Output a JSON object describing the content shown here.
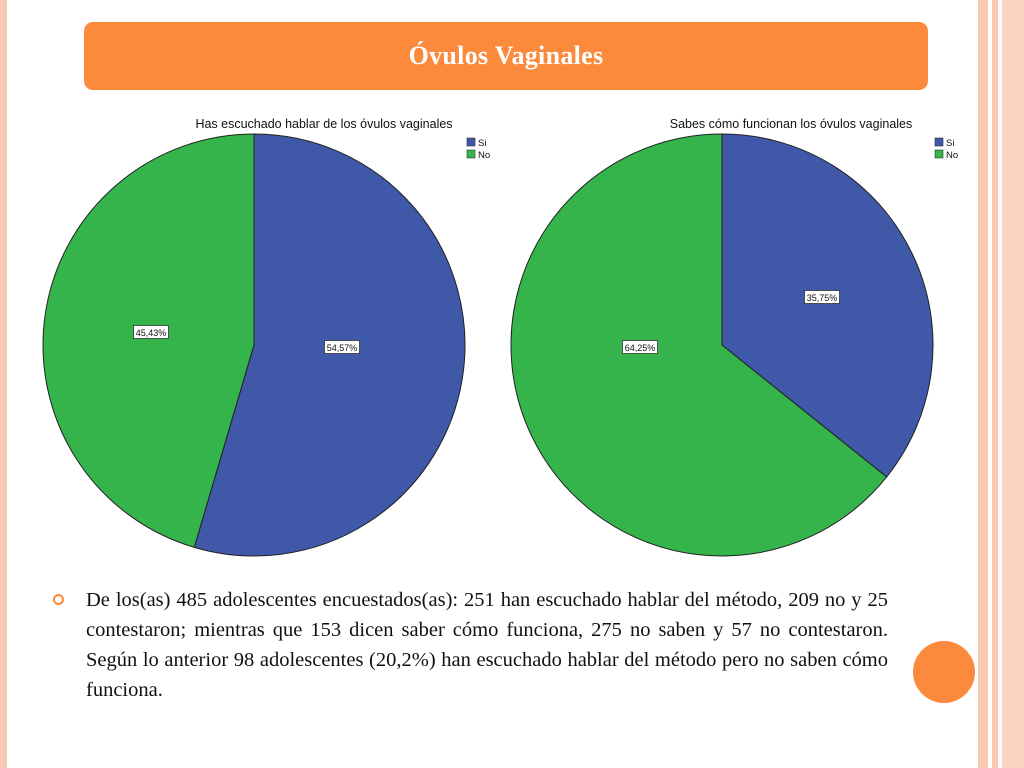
{
  "slide": {
    "title": "Óvulos Vaginales",
    "body_text": "De los(as) 485 adolescentes encuestados(as): 251 han escuchado hablar del método, 209 no y 25 contestaron; mientras que 153 dicen saber cómo funciona, 275 no saben y 57 no contestaron. Según lo anterior 98 adolescentes (20,2%) han escuchado hablar del método pero no saben cómo funciona."
  },
  "colors": {
    "accent": "#fb8a3c",
    "si": "#3f58a8",
    "no": "#34b44a"
  },
  "chart_data": [
    {
      "type": "pie",
      "title": "Has escuchado hablar de los óvulos vaginales",
      "legend_position": "top-right",
      "slices": [
        {
          "label": "Si",
          "value": 54.57,
          "data_label": "54,57%"
        },
        {
          "label": "No",
          "value": 45.43,
          "data_label": "45,43%"
        }
      ]
    },
    {
      "type": "pie",
      "title": "Sabes cómo funcionan los óvulos vaginales",
      "legend_position": "top-right",
      "slices": [
        {
          "label": "Si",
          "value": 35.75,
          "data_label": "35,75%"
        },
        {
          "label": "No",
          "value": 64.25,
          "data_label": "64,25%"
        }
      ]
    }
  ]
}
